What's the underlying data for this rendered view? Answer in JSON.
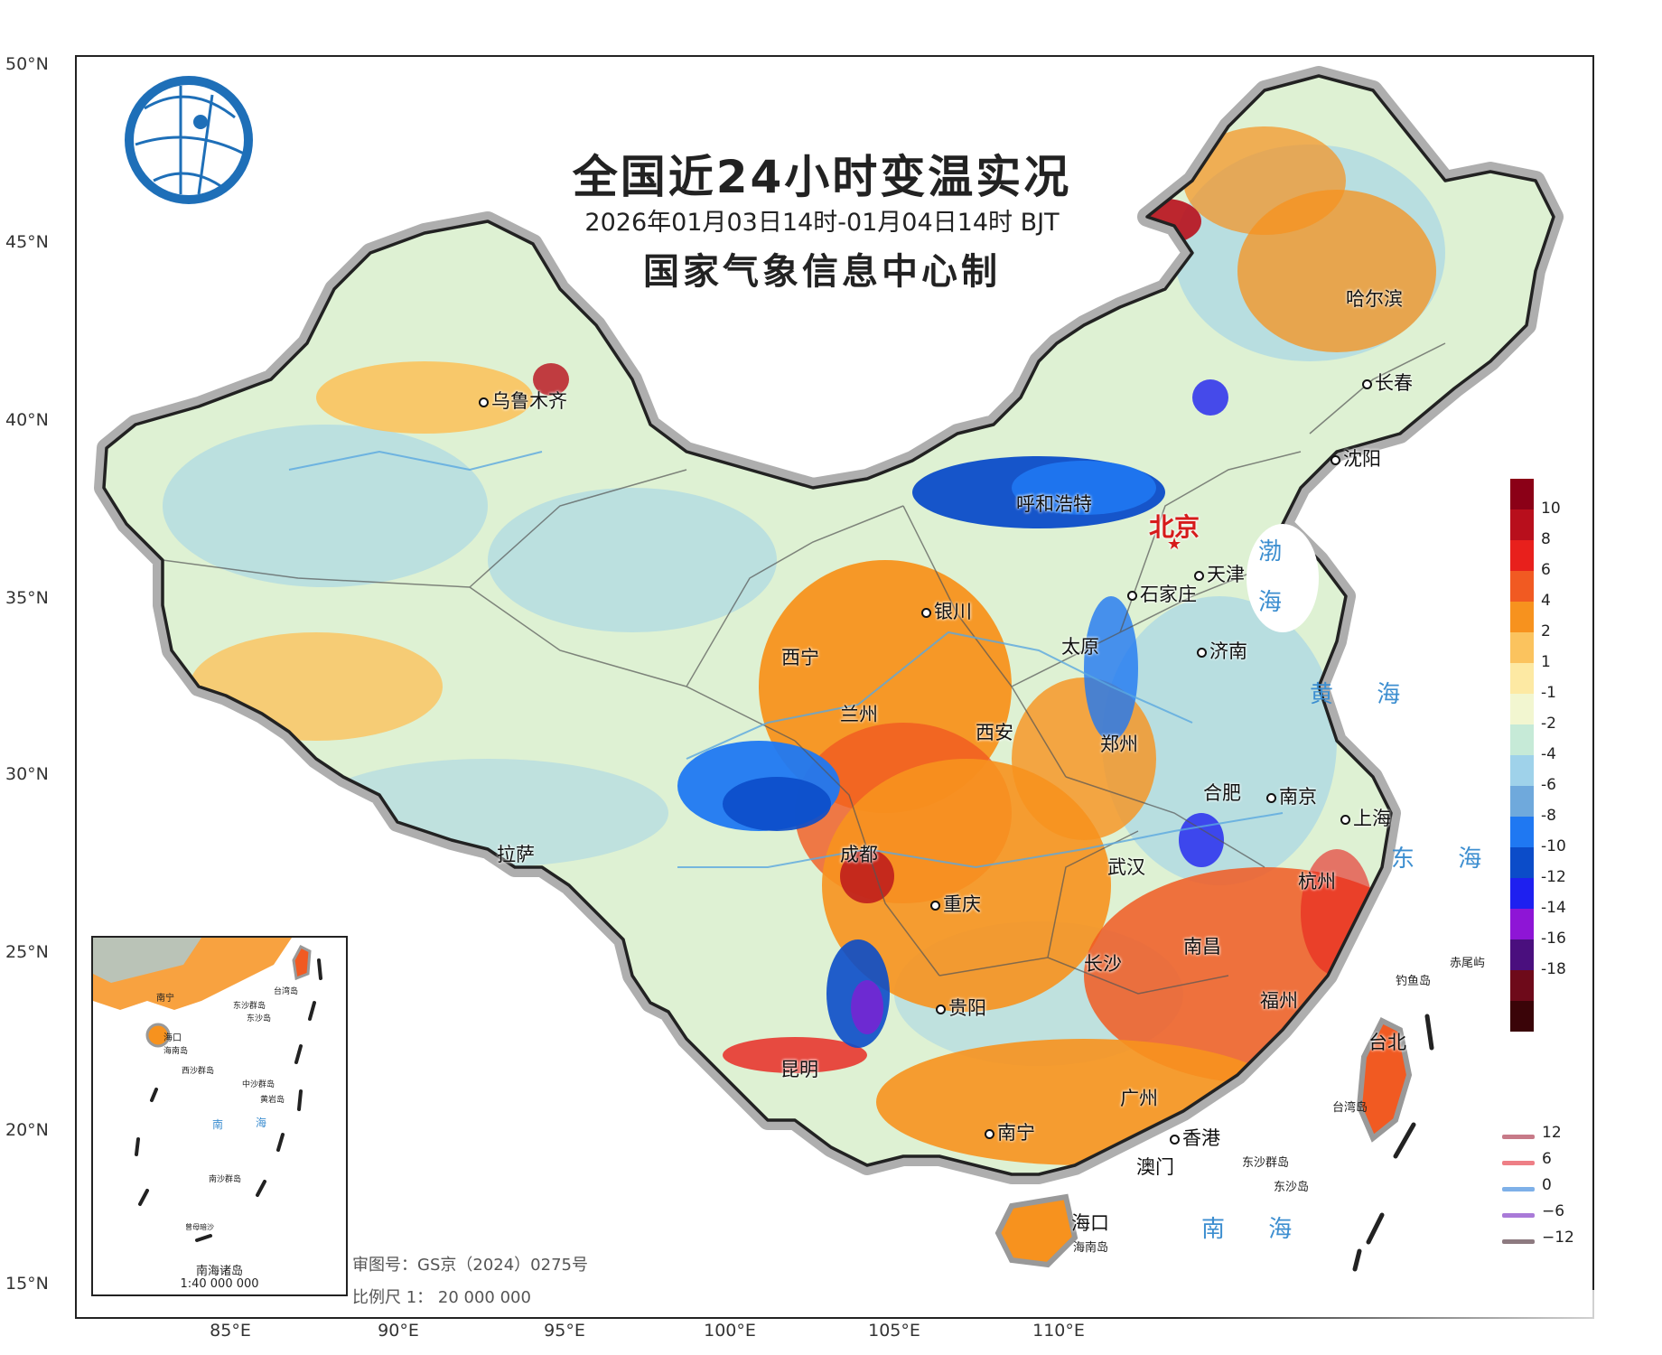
{
  "title": {
    "main": "全国近24小时变温实况",
    "period": "2026年01月03日14时-01月04日14时 BJT",
    "source": "国家气象信息中心制"
  },
  "lat_labels": [
    "50°N",
    "45°N",
    "40°N",
    "35°N",
    "30°N",
    "25°N",
    "20°N",
    "15°N"
  ],
  "lon_labels": [
    "85°E",
    "90°E",
    "95°E",
    "100°E",
    "105°E",
    "110°E"
  ],
  "cities": {
    "urumqi": "乌鲁木齐",
    "lhasa": "拉萨",
    "xining": "西宁",
    "lanzhou": "兰州",
    "yinchuan": "银川",
    "hohhot": "呼和浩特",
    "beijing": "北京",
    "tianjin": "天津",
    "shijiazhuang": "石家庄",
    "taiyuan": "太原",
    "jinan": "济南",
    "zhengzhou": "郑州",
    "xian": "西安",
    "chengdu": "成都",
    "chongqing": "重庆",
    "wuhan": "武汉",
    "hefei": "合肥",
    "nanjing": "南京",
    "shanghai": "上海",
    "hangzhou": "杭州",
    "nanchang": "南昌",
    "changsha": "长沙",
    "guiyang": "贵阳",
    "kunming": "昆明",
    "nanning": "南宁",
    "guangzhou": "广州",
    "hongkong": "香港",
    "macau": "澳门",
    "haikou": "海口",
    "fuzhou": "福州",
    "taipei": "台北",
    "shenyang": "沈阳",
    "changchun": "长春",
    "harbin": "哈尔滨"
  },
  "seas": {
    "bohai_1": "渤",
    "bohai_2": "海",
    "yellow_sea": "黄 海",
    "east_sea": "东 海",
    "south_sea": "南 海"
  },
  "islands": {
    "diaoyu": "钓鱼岛",
    "chiwei": "赤尾屿",
    "taiwan": "台湾岛",
    "hainan": "海南岛",
    "dongsha_group": "东沙群岛",
    "dongsha": "东沙岛"
  },
  "inset": {
    "title": "南海诸岛",
    "scale": "1:40 000 000",
    "labels": [
      "南宁",
      "海口",
      "海南岛",
      "东沙群岛",
      "东沙岛",
      "西沙群岛",
      "中沙群岛",
      "黄岩岛",
      "南沙群岛",
      "曾母暗沙",
      "台湾岛",
      "南",
      "海"
    ]
  },
  "footnotes": {
    "review": "审图号：GS京（2024）0275号",
    "scale": "比例尺 1： 20 000 000"
  },
  "legend": {
    "ticks": [
      "10",
      "8",
      "6",
      "4",
      "2",
      "1",
      "-1",
      "-2",
      "-4",
      "-6",
      "-8",
      "-10",
      "-12",
      "-14",
      "-16",
      "-18"
    ],
    "colors": [
      "#8b0017",
      "#b80f1c",
      "#e8201c",
      "#f15a22",
      "#f7921e",
      "#fbc35e",
      "#fde9a3",
      "#f2f6d0",
      "#c6ead7",
      "#9fd2ea",
      "#6fa9dc",
      "#1f78f2",
      "#0b4cc9",
      "#1e20f0",
      "#8e15d6",
      "#4a0f7e",
      "#6e0a1a",
      "#3a0408"
    ]
  },
  "isoline_legend": [
    {
      "label": "12",
      "color": "#c77a88"
    },
    {
      "label": "6",
      "color": "#ee7f86"
    },
    {
      "label": "0",
      "color": "#7eb0e8"
    },
    {
      "label": "−6",
      "color": "#a97ad8"
    },
    {
      "label": "−12",
      "color": "#8d7a80"
    }
  ]
}
